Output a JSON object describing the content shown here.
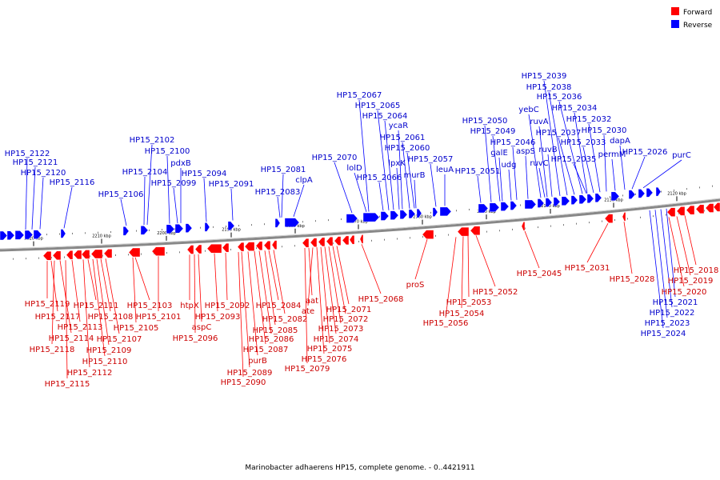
{
  "legend": {
    "forward_label": "Forward",
    "forward_color": "#ff0000",
    "reverse_label": "Reverse",
    "reverse_color": "#0000ff"
  },
  "caption": "Marinobacter adhaerens HP15, complete genome. - 0..4421911",
  "scale_ticks": [
    "2220 kbp",
    "2210 kbp",
    "2200 kbp",
    "2190 kbp",
    "2180 kbp",
    "2170 kbp",
    "2160 kbp",
    "2150 kbp",
    "2140 kbp",
    "2130 kbp",
    "2120 kbp"
  ],
  "reverse_genes": [
    "HP15_2122",
    "HP15_2121",
    "HP15_2120",
    "HP15_2116",
    "HP15_2106",
    "HP15_2104",
    "HP15_2102",
    "HP15_2100",
    "HP15_2099",
    "pdxB",
    "HP15_2094",
    "HP15_2091",
    "HP15_2083",
    "HP15_2081",
    "clpA",
    "HP15_2070",
    "lolD",
    "HP15_2067",
    "HP15_2066",
    "HP15_2065",
    "HP15_2064",
    "ycaR",
    "lpxK",
    "HP15_2061",
    "HP15_2060",
    "murB",
    "HP15_2057",
    "leuA",
    "HP15_2051",
    "HP15_2050",
    "HP15_2049",
    "galE",
    "udg",
    "HP15_2046",
    "aspS",
    "yebC",
    "ruvA",
    "ruvC",
    "ruvB",
    "HP15_2039",
    "HP15_2038",
    "HP15_2037",
    "HP15_2036",
    "HP15_2035",
    "HP15_2034",
    "HP15_2033",
    "HP15_2032",
    "HP15_2030",
    "permM",
    "dapA",
    "HP15_2026",
    "purC",
    "HP15_2024",
    "HP15_2023",
    "HP15_2022",
    "HP15_2021"
  ],
  "forward_genes": [
    "HP15_2119",
    "HP15_2117",
    "HP15_2118",
    "HP15_2114",
    "HP15_2115",
    "HP15_2113",
    "HP15_2112",
    "HP15_2111",
    "HP15_2110",
    "HP15_2109",
    "HP15_2108",
    "HP15_2107",
    "HP15_2105",
    "HP15_2103",
    "HP15_2101",
    "htpX",
    "HP15_2096",
    "aspC",
    "HP15_2093",
    "HP15_2092",
    "HP15_2090",
    "HP15_2089",
    "purB",
    "HP15_2087",
    "HP15_2086",
    "HP15_2085",
    "HP15_2084",
    "HP15_2082",
    "HP15_2079",
    "aat",
    "ate",
    "HP15_2076",
    "HP15_2075",
    "HP15_2074",
    "HP15_2073",
    "HP15_2072",
    "HP15_2071",
    "HP15_2068",
    "proS",
    "HP15_2056",
    "HP15_2054",
    "HP15_2053",
    "HP15_2052",
    "HP15_2045",
    "HP15_2031",
    "HP15_2028",
    "HP15_2020",
    "HP15_2019",
    "HP15_2018"
  ]
}
